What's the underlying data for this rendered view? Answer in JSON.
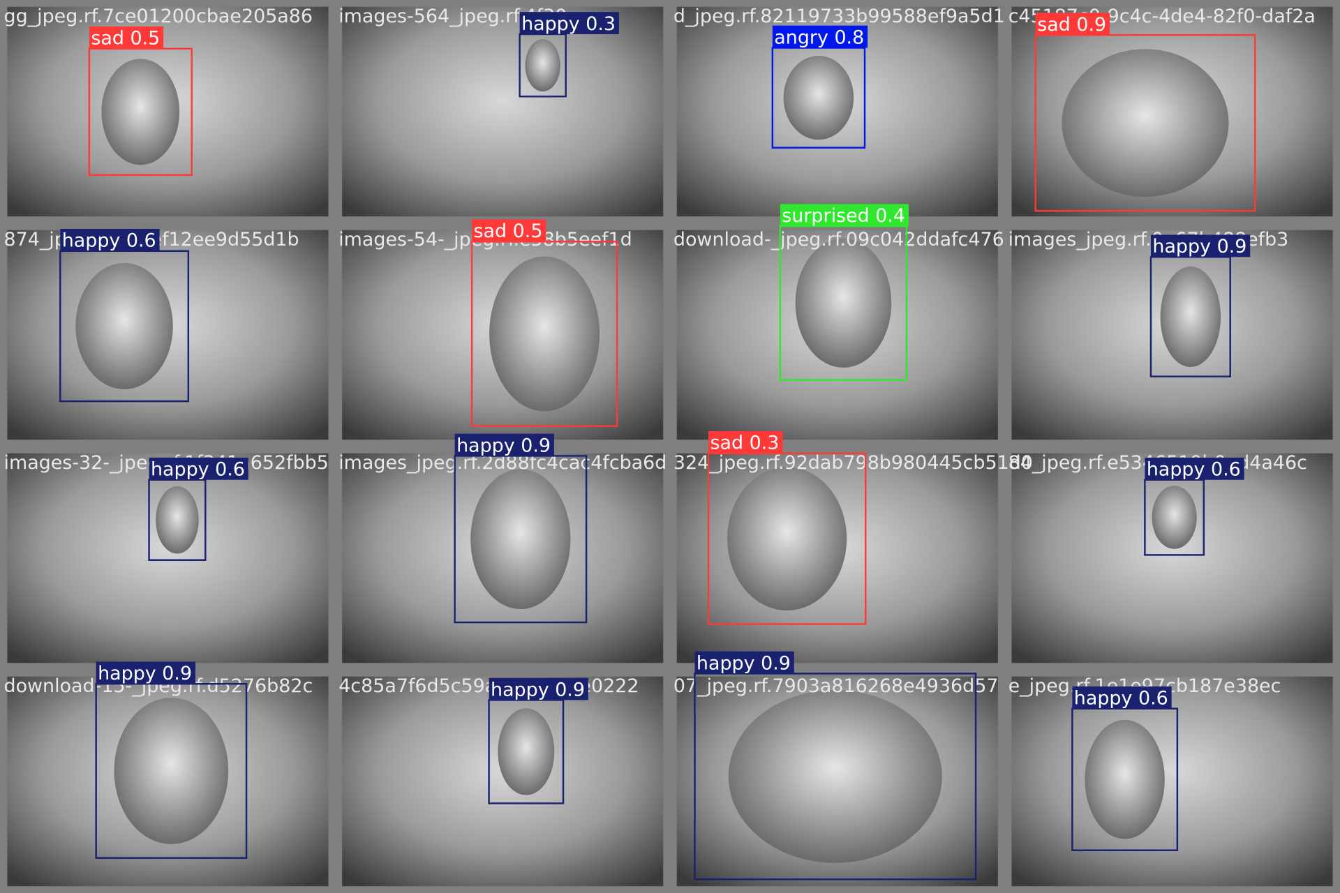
{
  "tiles": [
    {
      "filename": "gg_jpeg.rf.7ce01200cbae205a86",
      "detections": [
        {
          "label": "sad 0.5",
          "color": "#ff3838"
        }
      ]
    },
    {
      "filename": "images-564_jpeg.rf.4f30",
      "detections": [
        {
          "label": "happy 0.3",
          "color": "#1a2270"
        }
      ]
    },
    {
      "filename": "d_jpeg.rf.82119733b99588ef9a5d1",
      "detections": [
        {
          "label": "angry 0.8",
          "color": "#0018ec"
        }
      ]
    },
    {
      "filename": "c45187c0-9c4c-4de4-82f0-daf2a",
      "detections": [
        {
          "label": "sad 0.9",
          "color": "#ff3838"
        }
      ]
    },
    {
      "filename": "874_jpeg.rf.625ef12ee9d55d1b",
      "detections": [
        {
          "label": "happy 0.6",
          "color": "#1a2270"
        }
      ]
    },
    {
      "filename": "images-54-_jpeg.rf.e58b5eef1d",
      "detections": [
        {
          "label": "sad 0.5",
          "color": "#ff3838"
        }
      ]
    },
    {
      "filename": "download-_jpeg.rf.09c042ddafc476",
      "detections": [
        {
          "label": "surprised 0.4",
          "color": "#2ee82e"
        }
      ]
    },
    {
      "filename": "images_jpeg.rf.0e67b488efb3",
      "detections": [
        {
          "label": "happy 0.9",
          "color": "#1a2270"
        }
      ]
    },
    {
      "filename": "images-32-_jpeg.rf.1f341a652fbb5",
      "detections": [
        {
          "label": "happy 0.6",
          "color": "#1a2270"
        }
      ]
    },
    {
      "filename": "images_jpeg.rf.2d88fc4cac4fcba6d",
      "detections": [
        {
          "label": "happy 0.9",
          "color": "#1a2270"
        }
      ]
    },
    {
      "filename": "324_jpeg.rf.92dab798b980445cb51d0",
      "detections": [
        {
          "label": "sad 0.3",
          "color": "#ff3838"
        }
      ]
    },
    {
      "filename": "84_jpeg.rf.e5346519b0ad4a46c",
      "detections": [
        {
          "label": "happy 0.6",
          "color": "#1a2270"
        }
      ]
    },
    {
      "filename": "download-15-_jpeg.rf.d5276b82c",
      "detections": [
        {
          "label": "happy 0.9",
          "color": "#1a2270"
        }
      ]
    },
    {
      "filename": "4c85a7f6d5c59ab49a831e0222",
      "detections": [
        {
          "label": "happy 0.9",
          "color": "#1a2270"
        }
      ]
    },
    {
      "filename": "07_jpeg.rf.7903a816268e4936d57",
      "detections": [
        {
          "label": "happy 0.9",
          "color": "#1a2270"
        }
      ]
    },
    {
      "filename": "e_jpeg.rf.1e1e97cb187e38ec",
      "detections": [
        {
          "label": "happy 0.6",
          "color": "#1a2270"
        }
      ]
    }
  ]
}
